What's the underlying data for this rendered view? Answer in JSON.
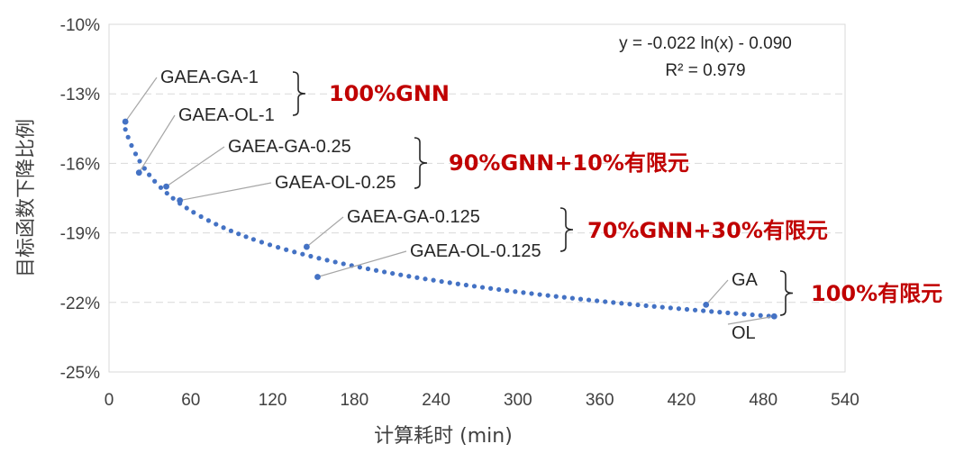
{
  "chart_data": {
    "type": "scatter",
    "title": "",
    "xlabel": "计算耗时 (min)",
    "ylabel": "目标函数下降比例",
    "xlim": [
      0,
      540
    ],
    "ylim": [
      -25,
      -10
    ],
    "x_ticks": [
      "0",
      "60",
      "120",
      "180",
      "240",
      "300",
      "360",
      "420",
      "480",
      "540"
    ],
    "y_ticks": [
      "-10%",
      "-13%",
      "-16%",
      "-19%",
      "-22%",
      "-25%"
    ],
    "grid": "horizontal-dashed",
    "colors": {
      "marker": "#4472c4",
      "group_label": "#c00000",
      "leader": "#a6a6a6"
    },
    "trendline": {
      "type": "logarithmic",
      "a": -0.022,
      "b": -0.09,
      "equation": "y = -0.022 ln(x) - 0.090",
      "r2": "R² = 0.979",
      "x_from": 12,
      "x_to": 488
    },
    "points": [
      {
        "name": "GAEA-GA-1",
        "x": 12,
        "y": -14.2
      },
      {
        "name": "GAEA-OL-1",
        "x": 22,
        "y": -16.4
      },
      {
        "name": "GAEA-GA-0.25",
        "x": 42,
        "y": -17.0
      },
      {
        "name": "GAEA-OL-0.25",
        "x": 52,
        "y": -17.6
      },
      {
        "name": "GAEA-GA-0.125",
        "x": 145,
        "y": -19.6
      },
      {
        "name": "GAEA-OL-0.125",
        "x": 153,
        "y": -20.9
      },
      {
        "name": "GA",
        "x": 438,
        "y": -22.1
      },
      {
        "name": "OL",
        "x": 488,
        "y": -22.6
      }
    ],
    "groups": [
      {
        "label": "100%GNN",
        "members": [
          "GAEA-GA-1",
          "GAEA-OL-1"
        ]
      },
      {
        "label": "90%GNN+10%有限元",
        "members": [
          "GAEA-GA-0.25",
          "GAEA-OL-0.25"
        ]
      },
      {
        "label": "70%GNN+30%有限元",
        "members": [
          "GAEA-GA-0.125",
          "GAEA-OL-0.125"
        ]
      },
      {
        "label": "100%有限元",
        "members": [
          "GA",
          "OL"
        ]
      }
    ]
  }
}
